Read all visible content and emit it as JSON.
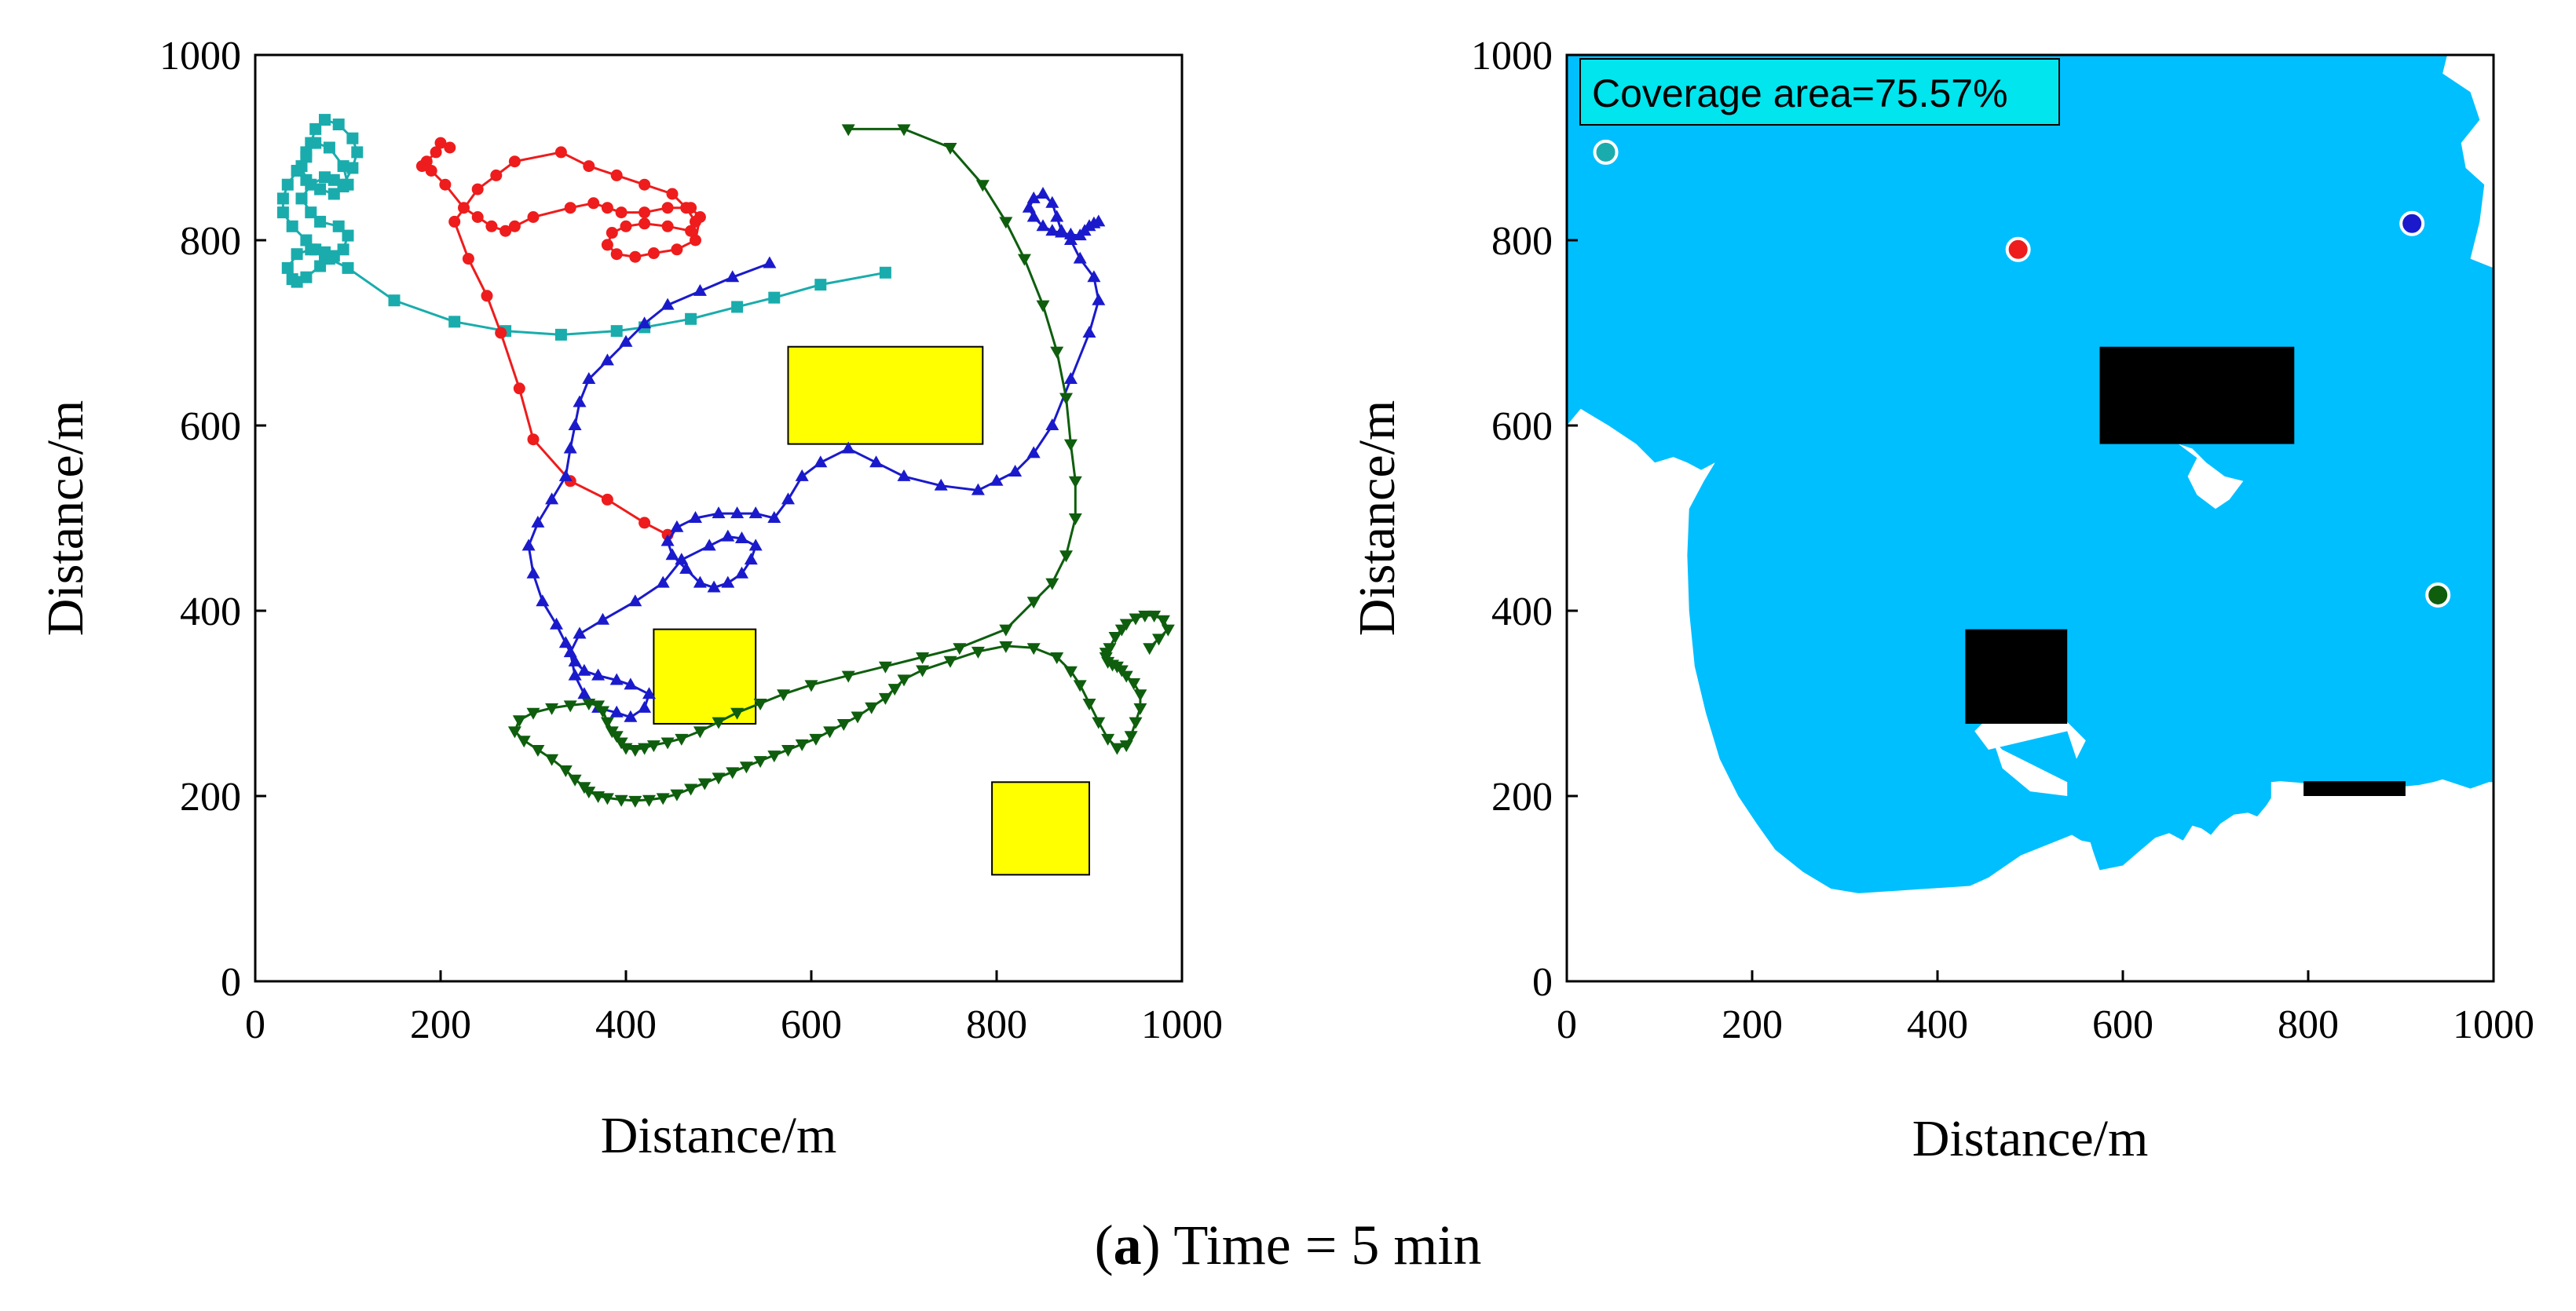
{
  "caption": {
    "letter": "a",
    "text": "Time = 5 min"
  },
  "colors": {
    "cyan": "#1aacac",
    "red": "#ee1c1c",
    "blue": "#1a1acc",
    "green": "#0e5e0e",
    "obstacle_left": "#ffff00",
    "obstacle_right": "#000000",
    "coverage": "#00bfff",
    "badge_bg": "#00e5ee"
  },
  "chart_data": [
    {
      "type": "line",
      "title": "",
      "xlabel": "Distance/m",
      "ylabel": "Distance/m",
      "xlim": [
        0,
        1000
      ],
      "ylim": [
        0,
        1000
      ],
      "xticks": [
        "0",
        "200",
        "400",
        "600",
        "800",
        "1000"
      ],
      "yticks": [
        "0",
        "200",
        "400",
        "600",
        "800",
        "1000"
      ],
      "obstacles": [
        {
          "x": [
            575,
            785
          ],
          "y": [
            580,
            685
          ]
        },
        {
          "x": [
            430,
            540
          ],
          "y": [
            278,
            380
          ]
        },
        {
          "x": [
            795,
            900
          ],
          "y": [
            115,
            215
          ]
        }
      ],
      "series": [
        {
          "name": "cyan",
          "marker": "square",
          "x": [
            680,
            610,
            560,
            520,
            470,
            420,
            390,
            330,
            270,
            215,
            150,
            100,
            80,
            70,
            55,
            45,
            40,
            35,
            45,
            60,
            75,
            85,
            95,
            100,
            90,
            70,
            60,
            50,
            60,
            75,
            85,
            95,
            100,
            95,
            80,
            65,
            55,
            50,
            55,
            70,
            85,
            95,
            105,
            110,
            105,
            90,
            75,
            65,
            60,
            55,
            45,
            35,
            30,
            30,
            40,
            55,
            65,
            75
          ],
          "y": [
            765,
            752,
            738,
            728,
            715,
            706,
            702,
            698,
            702,
            712,
            735,
            770,
            780,
            772,
            760,
            755,
            758,
            770,
            785,
            790,
            787,
            783,
            790,
            805,
            815,
            820,
            830,
            845,
            860,
            868,
            865,
            858,
            860,
            880,
            900,
            905,
            895,
            880,
            865,
            855,
            850,
            860,
            878,
            895,
            910,
            925,
            930,
            920,
            905,
            890,
            875,
            860,
            845,
            830,
            815,
            800,
            790,
            780
          ]
        },
        {
          "name": "red",
          "marker": "circle",
          "x": [
            445,
            420,
            380,
            340,
            300,
            285,
            265,
            250,
            230,
            215,
            240,
            260,
            280,
            330,
            360,
            390,
            420,
            450,
            465,
            475,
            470,
            445,
            420,
            400,
            385,
            380,
            390,
            410,
            430,
            455,
            475,
            480,
            470,
            445,
            420,
            395,
            380,
            365,
            340,
            300,
            280,
            270,
            255,
            240,
            225,
            205,
            190,
            180,
            185,
            195,
            200,
            210
          ],
          "y": [
            482,
            495,
            520,
            540,
            585,
            640,
            700,
            740,
            780,
            820,
            855,
            870,
            885,
            895,
            880,
            870,
            860,
            850,
            835,
            820,
            810,
            815,
            818,
            815,
            808,
            795,
            785,
            782,
            786,
            790,
            800,
            825,
            835,
            835,
            830,
            830,
            835,
            840,
            835,
            825,
            815,
            810,
            815,
            825,
            835,
            860,
            875,
            880,
            885,
            895,
            905,
            900
          ]
        },
        {
          "name": "blue",
          "marker": "triangle-up",
          "x": [
            555,
            515,
            480,
            445,
            420,
            400,
            380,
            360,
            350,
            345,
            340,
            335,
            320,
            305,
            295,
            300,
            310,
            325,
            335,
            345,
            355,
            370,
            390,
            405,
            425,
            420,
            405,
            390,
            370,
            355,
            345,
            340,
            350,
            375,
            410,
            440,
            460,
            490,
            510,
            525,
            540,
            535,
            525,
            510,
            495,
            480,
            465,
            450,
            445,
            455,
            475,
            500,
            520,
            540,
            560,
            575,
            590,
            610,
            640,
            670,
            700,
            740,
            780,
            800,
            820,
            840,
            860,
            880,
            900,
            910,
            905,
            890,
            880,
            870,
            865,
            860,
            850,
            840,
            835,
            840,
            850,
            860,
            870,
            880,
            890,
            895,
            900,
            905,
            910
          ],
          "y": [
            775,
            760,
            745,
            730,
            710,
            690,
            670,
            650,
            625,
            600,
            575,
            545,
            520,
            495,
            470,
            440,
            410,
            385,
            365,
            345,
            335,
            330,
            325,
            320,
            310,
            295,
            285,
            290,
            295,
            310,
            330,
            355,
            375,
            390,
            410,
            430,
            455,
            470,
            480,
            478,
            470,
            455,
            440,
            430,
            425,
            430,
            445,
            460,
            475,
            490,
            500,
            505,
            505,
            505,
            500,
            520,
            545,
            560,
            575,
            560,
            545,
            535,
            530,
            540,
            550,
            570,
            600,
            650,
            700,
            735,
            760,
            780,
            800,
            810,
            825,
            840,
            850,
            845,
            835,
            825,
            815,
            810,
            808,
            806,
            805,
            810,
            815,
            818,
            820
          ]
        },
        {
          "name": "green",
          "marker": "triangle-down",
          "x": [
            640,
            700,
            750,
            785,
            810,
            830,
            850,
            865,
            875,
            880,
            885,
            885,
            875,
            860,
            840,
            810,
            760,
            720,
            680,
            640,
            600,
            570,
            545,
            520,
            500,
            480,
            460,
            445,
            430,
            420,
            410,
            400,
            395,
            390,
            385,
            380,
            375,
            370,
            360,
            340,
            320,
            300,
            285,
            280,
            290,
            305,
            320,
            335,
            345,
            355,
            360,
            370,
            380,
            395,
            410,
            425,
            440,
            455,
            470,
            485,
            500,
            515,
            530,
            545,
            560,
            575,
            590,
            605,
            620,
            635,
            650,
            665,
            680,
            690,
            700,
            720,
            750,
            780,
            810,
            840,
            865,
            880,
            890,
            900,
            910,
            920,
            930,
            940,
            945,
            950,
            955,
            955,
            948,
            940,
            935,
            930,
            925,
            920,
            918,
            918,
            922,
            928,
            935,
            940,
            950,
            960,
            970,
            980,
            985,
            975,
            965
          ],
          "y": [
            920,
            920,
            900,
            860,
            820,
            780,
            730,
            680,
            630,
            580,
            540,
            500,
            460,
            430,
            410,
            380,
            360,
            350,
            340,
            330,
            320,
            310,
            300,
            290,
            280,
            270,
            262,
            258,
            255,
            252,
            250,
            252,
            258,
            265,
            270,
            280,
            292,
            298,
            300,
            298,
            295,
            290,
            282,
            270,
            260,
            250,
            240,
            228,
            218,
            210,
            205,
            200,
            198,
            196,
            195,
            196,
            198,
            202,
            208,
            214,
            220,
            226,
            232,
            238,
            244,
            250,
            256,
            262,
            270,
            278,
            286,
            296,
            306,
            316,
            326,
            336,
            346,
            356,
            362,
            360,
            350,
            335,
            320,
            300,
            280,
            262,
            252,
            255,
            265,
            280,
            295,
            310,
            322,
            330,
            336,
            340,
            342,
            345,
            350,
            355,
            360,
            372,
            380,
            386,
            392,
            395,
            395,
            390,
            380,
            370,
            360
          ]
        }
      ]
    },
    {
      "type": "heatmap",
      "title": "",
      "xlabel": "Distance/m",
      "ylabel": "Distance/m",
      "xlim": [
        0,
        1000
      ],
      "ylim": [
        0,
        1000
      ],
      "xticks": [
        "0",
        "200",
        "400",
        "600",
        "800",
        "1000"
      ],
      "yticks": [
        "0",
        "200",
        "400",
        "600",
        "800",
        "1000"
      ],
      "annotation": "Coverage area=75.57%",
      "coverage_boundary": {
        "x": [
          0,
          0,
          15,
          45,
          75,
          95,
          115,
          130,
          145,
          160,
          148,
          132,
          130,
          132,
          138,
          150,
          165,
          185,
          205,
          225,
          255,
          285,
          315,
          345,
          375,
          405,
          435,
          455,
          490,
          525,
          545,
          555,
          565,
          568,
          575,
          600,
          615,
          635,
          650,
          665,
          675,
          685,
          695,
          705,
          720,
          735,
          745,
          755,
          760,
          760,
          770,
          795,
          820,
          850,
          880,
          900,
          920,
          935,
          945,
          960,
          975,
          995,
          1000,
          1000,
          975,
          985,
          990,
          970,
          965,
          985,
          975,
          945,
          950,
          945,
          935,
          915,
          800
        ],
        "y": [
          1000,
          600,
          618,
          600,
          580,
          560,
          566,
          560,
          552,
          560,
          540,
          510,
          460,
          400,
          340,
          290,
          240,
          200,
          170,
          142,
          118,
          100,
          95,
          97,
          99,
          101,
          103,
          112,
          136,
          150,
          158,
          152,
          150,
          140,
          120,
          125,
          138,
          155,
          160,
          152,
          168,
          165,
          158,
          170,
          180,
          182,
          178,
          190,
          198,
          215,
          216,
          214,
          212,
          210,
          208,
          210,
          212,
          215,
          218,
          213,
          208,
          215,
          215,
          770,
          780,
          820,
          860,
          878,
          905,
          930,
          960,
          980,
          1000,
          1000,
          1000,
          1000,
          1000
        ]
      },
      "uncovered_holes": [
        {
          "x": [
            540,
            455,
            440,
            460,
            500,
            520,
            540,
            560,
            550
          ],
          "y": [
            270,
            250,
            270,
            290,
            300,
            298,
            280,
            260,
            240
          ]
        },
        {
          "x": [
            460,
            470,
            490,
            520,
            540,
            540,
            500,
            470
          ],
          "y": [
            260,
            250,
            240,
            225,
            215,
            200,
            205,
            230
          ]
        },
        {
          "x": [
            660,
            675,
            690,
            710,
            730,
            715,
            700,
            680,
            670,
            680,
            660
          ],
          "y": [
            580,
            575,
            560,
            545,
            540,
            520,
            510,
            525,
            545,
            565,
            580
          ]
        }
      ],
      "obstacles": [
        {
          "x": [
            575,
            785
          ],
          "y": [
            580,
            685
          ]
        },
        {
          "x": [
            430,
            540
          ],
          "y": [
            278,
            380
          ]
        },
        {
          "x": [
            795,
            905
          ],
          "y": [
            200,
            216
          ]
        }
      ],
      "agents": [
        {
          "name": "cyan",
          "x": 42,
          "y": 895
        },
        {
          "name": "red",
          "x": 487,
          "y": 790
        },
        {
          "name": "blue",
          "x": 912,
          "y": 818
        },
        {
          "name": "green",
          "x": 940,
          "y": 417
        }
      ]
    }
  ]
}
